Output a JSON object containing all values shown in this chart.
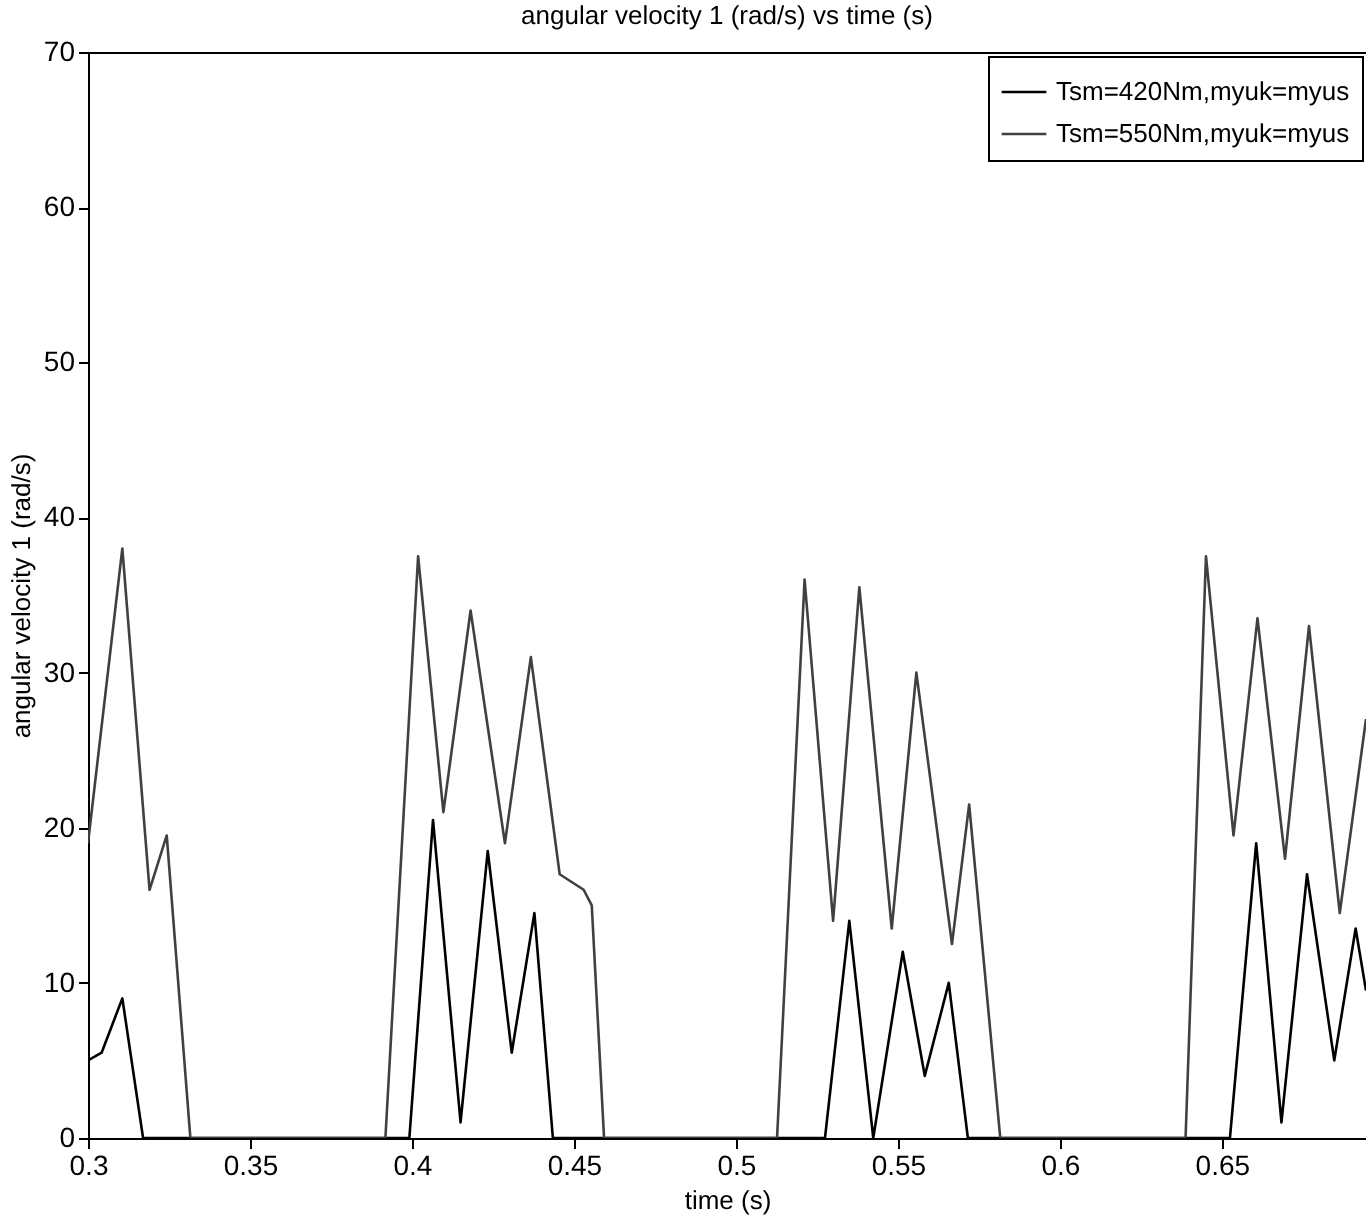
{
  "chart_data": {
    "type": "line",
    "title": "angular velocity 1 (rad/s) vs time (s)",
    "xlabel": "time (s)",
    "ylabel": "angular velocity 1 (rad/s)",
    "xlim": [
      0.3,
      0.6945
    ],
    "xticks": [
      0.3,
      0.35,
      0.4,
      0.45,
      0.5,
      0.55,
      0.6,
      0.65
    ],
    "ylim": [
      0,
      70
    ],
    "yticks": [
      0,
      10,
      20,
      30,
      40,
      50,
      60,
      70
    ],
    "legend": "top right",
    "grid": false,
    "marker": "none",
    "line_style": "solid",
    "series": [
      {
        "name": "Tsm=420Nm,myuk=myus",
        "color": "#000000",
        "x": [
          0.3,
          0.3042,
          0.3106,
          0.317,
          0.35,
          0.3992,
          0.4065,
          0.415,
          0.4234,
          0.4308,
          0.4378,
          0.4435,
          0.5,
          0.5275,
          0.535,
          0.5424,
          0.5515,
          0.5583,
          0.5657,
          0.5716,
          0.62,
          0.6525,
          0.6606,
          0.6684,
          0.6763,
          0.6847,
          0.6913,
          0.6945
        ],
        "values": [
          5,
          5.5,
          9,
          0,
          0,
          0,
          20.5,
          1,
          18.5,
          5.5,
          14.5,
          0,
          0,
          0,
          14,
          0,
          12,
          4,
          10,
          0,
          0,
          0,
          19,
          1,
          17,
          5,
          13.5,
          9.5
        ]
      },
      {
        "name": "Tsm=550Nm,myuk=myus",
        "color": "#404040",
        "x": [
          0.3,
          0.3106,
          0.319,
          0.3243,
          0.3316,
          0.36,
          0.3918,
          0.4019,
          0.4097,
          0.4181,
          0.4287,
          0.4367,
          0.4456,
          0.453,
          0.4555,
          0.4593,
          0.49,
          0.5127,
          0.5212,
          0.53,
          0.5381,
          0.5481,
          0.5557,
          0.5667,
          0.572,
          0.5816,
          0.61,
          0.6388,
          0.6451,
          0.6536,
          0.661,
          0.6695,
          0.6769,
          0.6864,
          0.6945
        ],
        "values": [
          19,
          38,
          16,
          19.5,
          0,
          0,
          0,
          37.5,
          21,
          34,
          19,
          31,
          17,
          16,
          15,
          0,
          0,
          0,
          36,
          14,
          35.5,
          13.5,
          30,
          12.5,
          21.5,
          0,
          0,
          0,
          37.5,
          19.5,
          33.5,
          18,
          33,
          14.5,
          27
        ]
      }
    ]
  }
}
